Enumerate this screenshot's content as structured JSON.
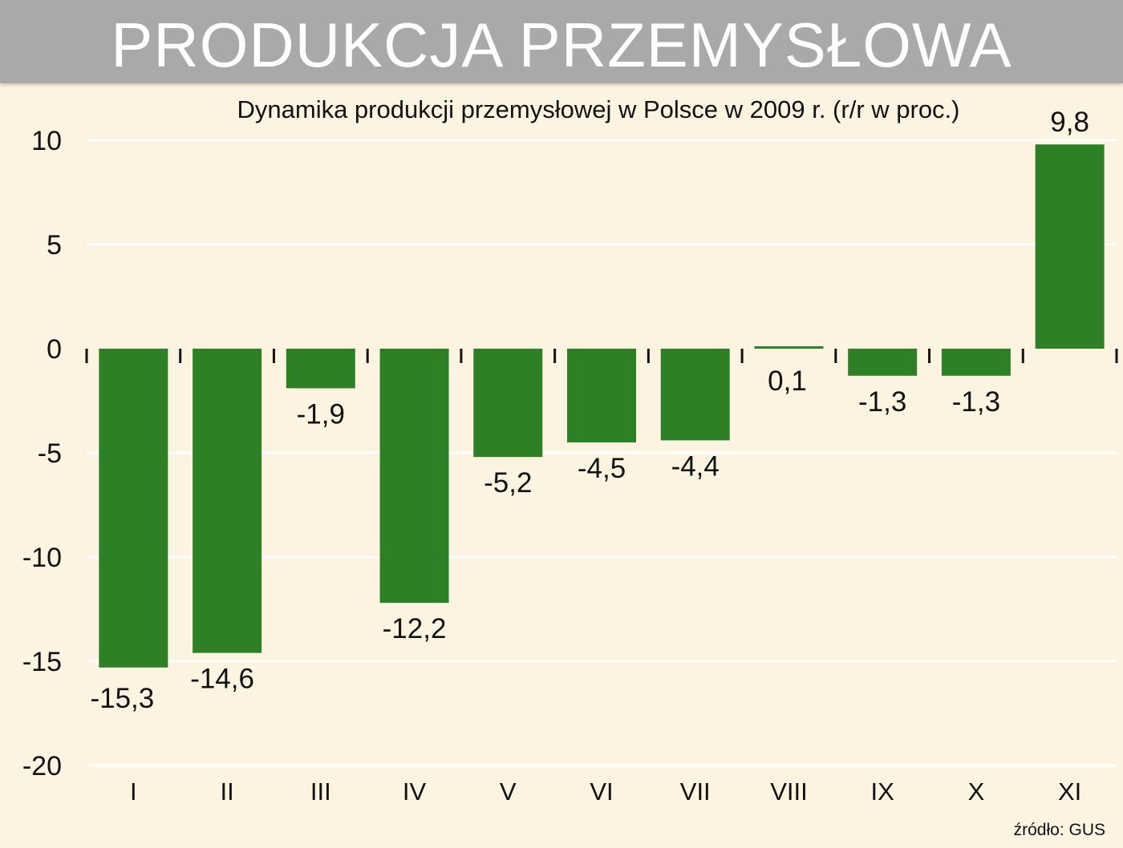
{
  "header": {
    "title": "PRODUKCJA PRZEMYSŁOWA"
  },
  "source": "źródło: GUS",
  "colors": {
    "background": "#fdf3e1",
    "banner": "#a9a9a9",
    "bar": "#2e8027",
    "gridline": "#ffffff",
    "text": "#111111"
  },
  "chart_data": {
    "type": "bar",
    "title": "Dynamika produkcji przemysłowej w Polsce w 2009 r. (r/r w proc.)",
    "xlabel": "",
    "ylabel": "",
    "categories": [
      "I",
      "II",
      "III",
      "IV",
      "V",
      "VI",
      "VII",
      "VIII",
      "IX",
      "X",
      "XI"
    ],
    "values": [
      -15.3,
      -14.6,
      -1.9,
      -12.2,
      -5.2,
      -4.5,
      -4.4,
      0.1,
      -1.3,
      -1.3,
      9.8
    ],
    "value_labels": [
      "-15,3",
      "-14,6",
      "-1,9",
      "-12,2",
      "-5,2",
      "-4,5",
      "-4,4",
      "0,1",
      "-1,3",
      "-1,3",
      "9,8"
    ],
    "yticks": [
      10,
      5,
      0,
      -5,
      -10,
      -15,
      -20
    ],
    "ytick_labels": [
      "10",
      "5",
      "0",
      "-5",
      "-10",
      "-15",
      "-20"
    ],
    "ylim": [
      -20,
      10
    ],
    "grid": true,
    "legend": "none"
  }
}
